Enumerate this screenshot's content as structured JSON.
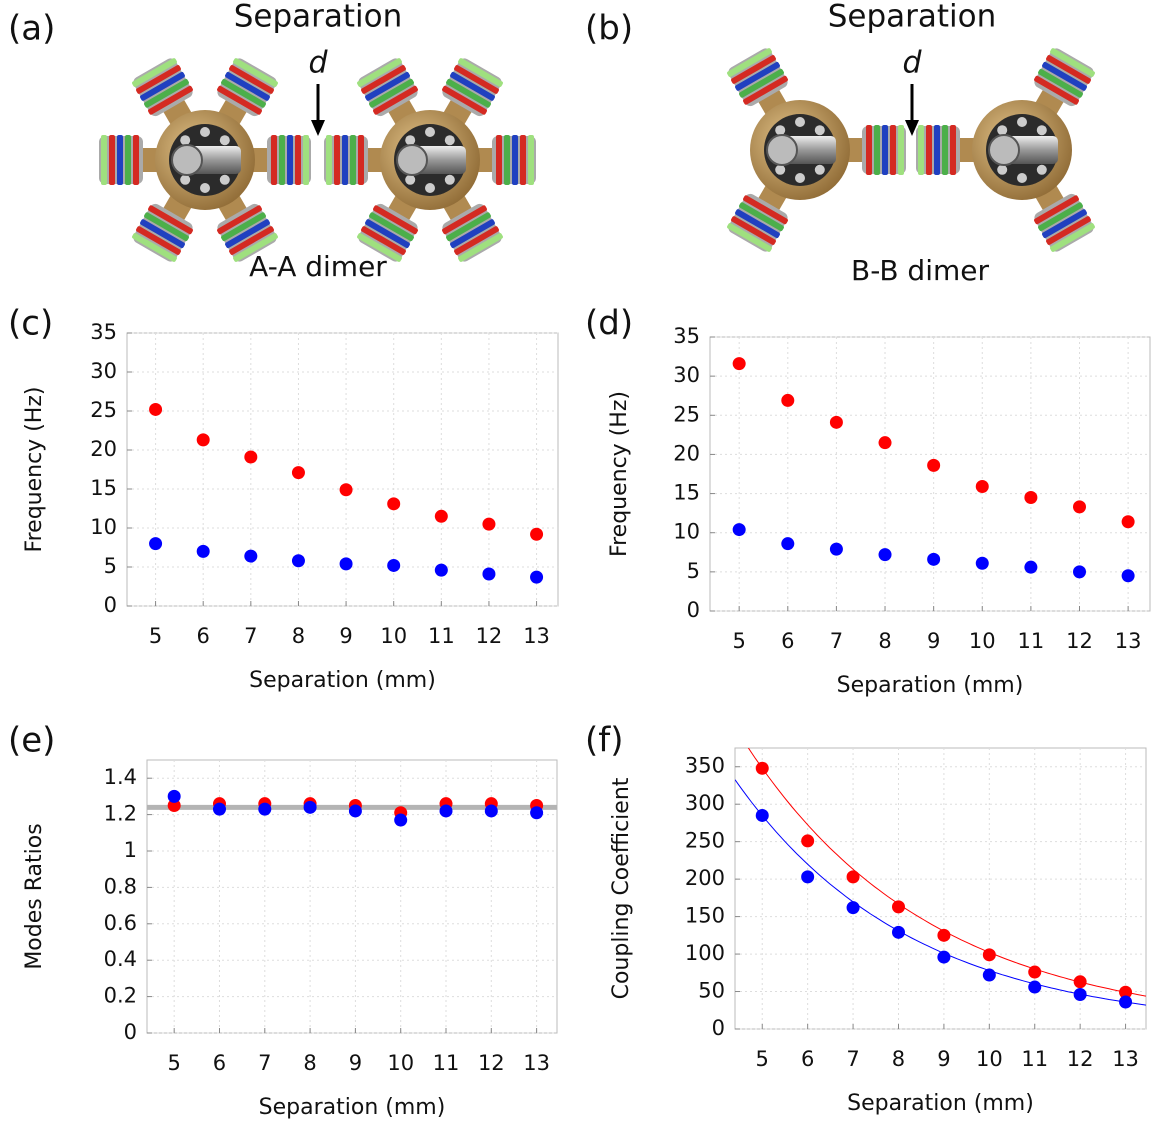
{
  "photos": [
    {
      "label": "(a)",
      "title": "Separation",
      "gap_label": "d",
      "caption": "A-A dimer",
      "arms": 6
    },
    {
      "label": "(b)",
      "title": "Separation",
      "gap_label": "d",
      "caption": "B-B dimer",
      "arms": 3
    }
  ],
  "chart_data": [
    {
      "type": "scatter",
      "label": "(c)",
      "x_label": "Separation (mm)",
      "y_label": "Frequency (Hz)",
      "x": [
        5,
        6,
        7,
        8,
        9,
        10,
        11,
        12,
        13
      ],
      "xlim": [
        4.4,
        13.45
      ],
      "xticks": [
        5,
        6,
        7,
        8,
        9,
        10,
        11,
        12,
        13
      ],
      "ylim": [
        0,
        35
      ],
      "yticks": [
        0,
        5,
        10,
        15,
        20,
        25,
        30,
        35
      ],
      "grid": true,
      "series": [
        {
          "color": "#ff0000",
          "values": [
            25.2,
            21.3,
            19.1,
            17.1,
            14.9,
            13.1,
            11.5,
            10.5,
            9.2
          ]
        },
        {
          "color": "#0000ff",
          "values": [
            8.0,
            7.0,
            6.4,
            5.8,
            5.4,
            5.2,
            4.6,
            4.1,
            3.7
          ]
        }
      ]
    },
    {
      "type": "scatter",
      "label": "(d)",
      "x_label": "Separation (mm)",
      "y_label": "Frequency (Hz)",
      "x": [
        5,
        6,
        7,
        8,
        9,
        10,
        11,
        12,
        13
      ],
      "xlim": [
        4.4,
        13.45
      ],
      "xticks": [
        5,
        6,
        7,
        8,
        9,
        10,
        11,
        12,
        13
      ],
      "ylim": [
        0,
        35
      ],
      "yticks": [
        0,
        5,
        10,
        15,
        20,
        25,
        30,
        35
      ],
      "grid": true,
      "series": [
        {
          "color": "#ff0000",
          "values": [
            31.6,
            26.9,
            24.1,
            21.5,
            18.6,
            15.9,
            14.5,
            13.3,
            11.4
          ]
        },
        {
          "color": "#0000ff",
          "values": [
            10.4,
            8.6,
            7.9,
            7.2,
            6.6,
            6.1,
            5.6,
            5.0,
            4.5
          ]
        }
      ]
    },
    {
      "type": "scatter",
      "label": "(e)",
      "x_label": "Separation (mm)",
      "y_label": "Modes Ratios",
      "x": [
        5,
        6,
        7,
        8,
        9,
        10,
        11,
        12,
        13
      ],
      "xlim": [
        4.4,
        13.45
      ],
      "xticks": [
        5,
        6,
        7,
        8,
        9,
        10,
        11,
        12,
        13
      ],
      "ylim": [
        0,
        1.5
      ],
      "yticks": [
        0,
        0.2,
        0.4,
        0.6,
        0.8,
        1,
        1.2,
        1.4
      ],
      "grid": true,
      "hline": 1.24,
      "hline_color": "#b4b4b4",
      "series": [
        {
          "color": "#ff0000",
          "values": [
            1.25,
            1.26,
            1.26,
            1.26,
            1.25,
            1.21,
            1.26,
            1.26,
            1.25
          ]
        },
        {
          "color": "#0000ff",
          "values": [
            1.3,
            1.23,
            1.23,
            1.24,
            1.22,
            1.17,
            1.22,
            1.22,
            1.21
          ]
        }
      ]
    },
    {
      "type": "scatter",
      "label": "(f)",
      "x_label": "Separation (mm)",
      "y_label": "Coupling Coefficient",
      "x": [
        5,
        6,
        7,
        8,
        9,
        10,
        11,
        12,
        13
      ],
      "xlim": [
        4.4,
        13.45
      ],
      "xticks": [
        5,
        6,
        7,
        8,
        9,
        10,
        11,
        12,
        13
      ],
      "ylim": [
        0,
        375
      ],
      "yticks": [
        0,
        50,
        100,
        150,
        200,
        250,
        300,
        350
      ],
      "grid": true,
      "series": [
        {
          "color": "#ff0000",
          "values": [
            348,
            251,
            203,
            163,
            125,
            99,
            76,
            63,
            49
          ],
          "fit": {
            "a": 1185,
            "b": 0.245
          }
        },
        {
          "color": "#0000ff",
          "values": [
            285,
            203,
            162,
            129,
            96,
            72,
            56,
            46,
            36
          ],
          "fit": {
            "a": 1040,
            "b": 0.259
          }
        }
      ]
    }
  ]
}
